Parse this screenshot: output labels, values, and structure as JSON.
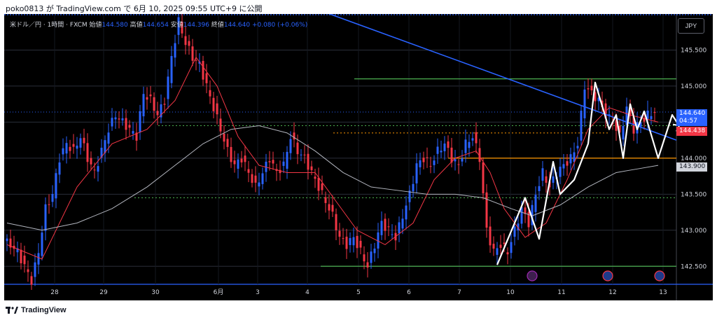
{
  "header": {
    "text": "poko0813 が TradingView.com で 6月 10, 2025 09:55 UTC+9 に公開"
  },
  "legend": {
    "symbol": "米ドル／円 · 1時間 · FXCM",
    "open_label": "始値",
    "open": "144.580",
    "high_label": "高値",
    "high": "144.654",
    "low_label": "安値",
    "low": "144.396",
    "close_label": "終値",
    "close": "144.640",
    "change": "+0.080 (+0.06%)"
  },
  "currency_button": "JPY",
  "price_tags": {
    "current": "144.640",
    "countdown": "04:57",
    "prev": "144.438",
    "ma": "143.900"
  },
  "footer": {
    "brand": "TradingView"
  },
  "colors": {
    "background": "#000000",
    "up": "#2962ff",
    "down": "#f23645",
    "trendline": "#2962ff",
    "green_levels": "#4caf50",
    "orange_level": "#ff9800",
    "projection": "#ffffff",
    "ma_fast": "#f23645",
    "ma_slow": "#b2b5be"
  },
  "event_icons": [
    "lightning-event-icon",
    "us-flag-icon",
    "us-flag-icon"
  ],
  "chart_data": {
    "type": "candlestick",
    "title": "米ドル／円 · 1時間 · FXCM",
    "xlabel": "",
    "ylabel": "JPY",
    "ylim": [
      142.25,
      146.0
    ],
    "x_ticks": [
      "28",
      "29",
      "30",
      "6月",
      "3",
      "4",
      "5",
      "6",
      "7",
      "10",
      "11",
      "12",
      "13"
    ],
    "y_ticks": [
      "145.500",
      "145.000",
      "144.500",
      "144.000",
      "143.500",
      "143.000",
      "142.500"
    ],
    "price_path": [
      [
        0,
        142.85
      ],
      [
        2,
        142.8
      ],
      [
        4,
        142.7
      ],
      [
        6,
        142.5
      ],
      [
        8,
        142.3
      ],
      [
        10,
        142.7
      ],
      [
        12,
        143.3
      ],
      [
        14,
        143.5
      ],
      [
        16,
        144.0
      ],
      [
        18,
        144.2
      ],
      [
        20,
        144.1
      ],
      [
        22,
        144.3
      ],
      [
        24,
        144.0
      ],
      [
        26,
        143.8
      ],
      [
        28,
        144.1
      ],
      [
        30,
        144.4
      ],
      [
        32,
        144.6
      ],
      [
        34,
        144.5
      ],
      [
        36,
        144.4
      ],
      [
        38,
        144.3
      ],
      [
        40,
        144.9
      ],
      [
        42,
        144.8
      ],
      [
        44,
        144.6
      ],
      [
        46,
        144.8
      ],
      [
        48,
        145.4
      ],
      [
        50,
        145.9
      ],
      [
        52,
        145.6
      ],
      [
        54,
        145.4
      ],
      [
        56,
        145.3
      ],
      [
        58,
        145.0
      ],
      [
        60,
        144.7
      ],
      [
        62,
        144.4
      ],
      [
        64,
        144.1
      ],
      [
        66,
        143.9
      ],
      [
        68,
        144.0
      ],
      [
        70,
        143.8
      ],
      [
        72,
        143.6
      ],
      [
        74,
        143.8
      ],
      [
        76,
        144.0
      ],
      [
        78,
        143.8
      ],
      [
        80,
        143.9
      ],
      [
        82,
        144.3
      ],
      [
        84,
        144.1
      ],
      [
        86,
        144.0
      ],
      [
        88,
        143.8
      ],
      [
        90,
        143.6
      ],
      [
        92,
        143.4
      ],
      [
        94,
        143.2
      ],
      [
        96,
        142.9
      ],
      [
        98,
        142.8
      ],
      [
        100,
        142.9
      ],
      [
        102,
        142.7
      ],
      [
        104,
        142.5
      ],
      [
        106,
        142.8
      ],
      [
        108,
        143.1
      ],
      [
        110,
        143.0
      ],
      [
        112,
        142.9
      ],
      [
        114,
        143.2
      ],
      [
        116,
        143.5
      ],
      [
        118,
        143.9
      ],
      [
        120,
        144.0
      ],
      [
        122,
        143.9
      ],
      [
        124,
        144.1
      ],
      [
        126,
        144.2
      ],
      [
        128,
        144.0
      ],
      [
        130,
        143.9
      ],
      [
        132,
        144.2
      ],
      [
        134,
        144.3
      ],
      [
        136,
        144.0
      ],
      [
        138,
        143.0
      ],
      [
        140,
        142.7
      ],
      [
        142,
        142.8
      ],
      [
        144,
        142.7
      ],
      [
        146,
        143.0
      ],
      [
        148,
        143.3
      ],
      [
        150,
        143.1
      ],
      [
        152,
        143.5
      ],
      [
        154,
        143.8
      ],
      [
        156,
        143.6
      ],
      [
        158,
        143.8
      ],
      [
        160,
        143.9
      ],
      [
        162,
        144.0
      ],
      [
        164,
        144.2
      ],
      [
        166,
        145.0
      ],
      [
        168,
        144.9
      ],
      [
        170,
        144.8
      ],
      [
        172,
        144.6
      ],
      [
        174,
        144.5
      ],
      [
        176,
        144.3
      ],
      [
        178,
        144.7
      ],
      [
        180,
        144.4
      ],
      [
        182,
        144.5
      ],
      [
        184,
        144.6
      ],
      [
        186,
        144.64
      ]
    ],
    "ma_fast_path": [
      [
        0,
        142.8
      ],
      [
        10,
        142.6
      ],
      [
        20,
        143.6
      ],
      [
        30,
        144.2
      ],
      [
        40,
        144.4
      ],
      [
        48,
        144.8
      ],
      [
        54,
        145.4
      ],
      [
        60,
        145.0
      ],
      [
        66,
        144.3
      ],
      [
        72,
        143.9
      ],
      [
        80,
        143.8
      ],
      [
        88,
        143.8
      ],
      [
        94,
        143.4
      ],
      [
        100,
        143.0
      ],
      [
        108,
        142.8
      ],
      [
        116,
        143.1
      ],
      [
        122,
        143.7
      ],
      [
        128,
        144.0
      ],
      [
        134,
        144.1
      ],
      [
        138,
        143.8
      ],
      [
        142,
        143.3
      ],
      [
        148,
        142.9
      ],
      [
        154,
        143.1
      ],
      [
        160,
        143.7
      ],
      [
        166,
        144.4
      ],
      [
        172,
        144.7
      ],
      [
        178,
        144.6
      ],
      [
        186,
        144.5
      ]
    ],
    "ma_slow_path": [
      [
        0,
        143.1
      ],
      [
        10,
        143.0
      ],
      [
        20,
        143.1
      ],
      [
        30,
        143.3
      ],
      [
        40,
        143.6
      ],
      [
        48,
        143.9
      ],
      [
        56,
        144.2
      ],
      [
        64,
        144.4
      ],
      [
        72,
        144.45
      ],
      [
        80,
        144.35
      ],
      [
        88,
        144.1
      ],
      [
        96,
        143.8
      ],
      [
        104,
        143.6
      ],
      [
        112,
        143.55
      ],
      [
        120,
        143.5
      ],
      [
        128,
        143.5
      ],
      [
        136,
        143.45
      ],
      [
        144,
        143.3
      ],
      [
        150,
        143.2
      ],
      [
        158,
        143.35
      ],
      [
        166,
        143.6
      ],
      [
        174,
        143.8
      ],
      [
        180,
        143.85
      ],
      [
        186,
        143.9
      ]
    ],
    "levels": {
      "green_top": 145.1,
      "green_dotted": 144.45,
      "orange_dotted": 144.35,
      "orange_solid": 144.0,
      "green_dotted_low": 143.45,
      "green_bottom": 142.5
    },
    "trendline": [
      [
        0,
        147.0
      ],
      [
        264,
        144.25
      ]
    ],
    "projection_path": [
      [
        140,
        142.52
      ],
      [
        148,
        143.45
      ],
      [
        152,
        142.88
      ],
      [
        156,
        143.95
      ],
      [
        158,
        143.5
      ],
      [
        162,
        143.7
      ],
      [
        166,
        144.2
      ],
      [
        168,
        145.05
      ],
      [
        172,
        144.4
      ],
      [
        174,
        144.6
      ],
      [
        176,
        144.0
      ],
      [
        178,
        144.75
      ],
      [
        180,
        144.4
      ],
      [
        182,
        144.65
      ],
      [
        186,
        144.0
      ],
      [
        190,
        144.6
      ],
      [
        192,
        144.45
      ]
    ]
  }
}
